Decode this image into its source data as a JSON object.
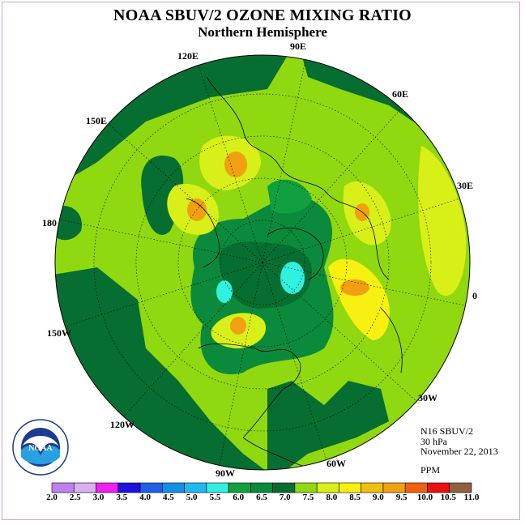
{
  "title": "NOAA SBUV/2 OZONE MIXING RATIO",
  "subtitle": "Northern Hemisphere",
  "longitude_labels": [
    "90E",
    "60E",
    "30E",
    "0",
    "30W",
    "60W",
    "90W",
    "120W",
    "150W",
    "180",
    "150E",
    "120E"
  ],
  "info": {
    "satellite": "N16 SBUV/2",
    "level": "30 hPa",
    "date": "November 22, 2013",
    "units": "PPM"
  },
  "logo": {
    "text": "NOAA",
    "ring_text": "NATIONAL OCEANIC AND ATMOSPHERIC ADMINISTRATION · U.S. DEPARTMENT OF COMMERCE"
  },
  "colorbar": {
    "ticks": [
      "2.0",
      "2.5",
      "3.0",
      "3.5",
      "4.0",
      "4.5",
      "5.0",
      "5.5",
      "6.0",
      "6.5",
      "7.0",
      "7.5",
      "8.0",
      "8.5",
      "9.0",
      "9.5",
      "10.0",
      "10.5",
      "11.0"
    ],
    "colors": [
      "#c080f0",
      "#d8b0f0",
      "#f020f0",
      "#2010e0",
      "#2060e8",
      "#1090e8",
      "#20b8f0",
      "#30f0e0",
      "#10a040",
      "#0a8a3a",
      "#066e30",
      "#90d810",
      "#d8f018",
      "#f8f010",
      "#f0c010",
      "#f0a010",
      "#f06010",
      "#e81010",
      "#906040"
    ]
  },
  "map_colors": {
    "ocean_background": "#90d810",
    "dark_green": "#066e30",
    "mid_green": "#0a8a3a",
    "light_green": "#10a040",
    "yellow_green": "#d8f018",
    "yellow": "#f8f010",
    "orange": "#f0a010",
    "cyan": "#30f0e0"
  }
}
